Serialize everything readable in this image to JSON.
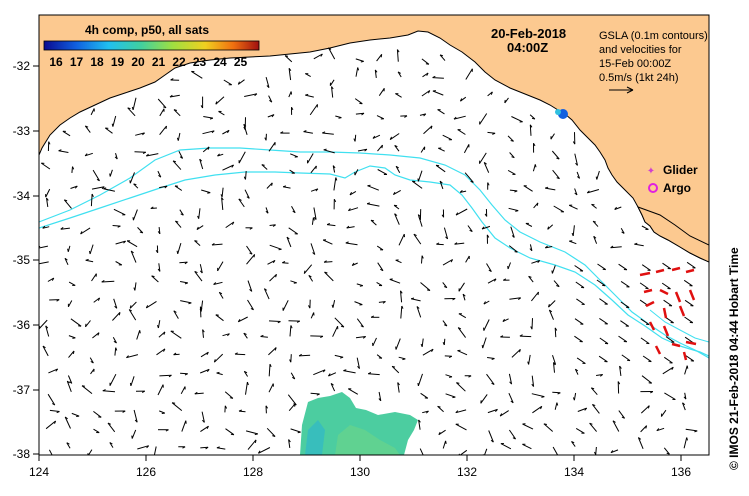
{
  "colorbar": {
    "title": "4h comp, p50, all sats",
    "ticks": [
      "16",
      "17",
      "18",
      "19",
      "20",
      "21",
      "22",
      "23",
      "24",
      "25"
    ]
  },
  "header": {
    "date": "20-Feb-2018",
    "time": "04:00Z"
  },
  "legend": {
    "line1": "GSLA (0.1m contours)",
    "line2": "and velocities for",
    "line3": "15-Feb 00:00Z",
    "line4": "0.5m/s (1kt 24h)"
  },
  "markers": {
    "glider_label": "Glider",
    "argo_label": "Argo",
    "glider_color": "#d040d0",
    "argo_color": "#e020e0"
  },
  "axes": {
    "x_ticks": [
      "124",
      "126",
      "128",
      "130",
      "132",
      "134",
      "136"
    ],
    "y_ticks": [
      "-32",
      "-33",
      "-34",
      "-35",
      "-36",
      "-37",
      "-38"
    ]
  },
  "credit": "© IMOS 21-Feb-2018 04:44 Hobart Time",
  "colors": {
    "land": "#fcc990",
    "contour": "#40e0f0",
    "arrow": "#000000",
    "highlight_arrow": "#e01010",
    "sst_patch": "#38c896"
  }
}
